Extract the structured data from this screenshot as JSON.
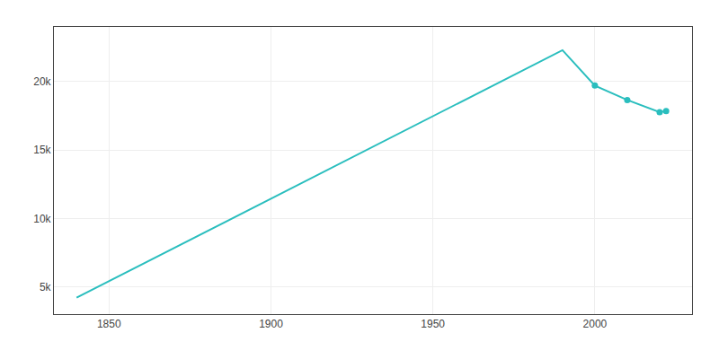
{
  "chart_data": {
    "type": "line",
    "x": [
      1840,
      1990,
      2000,
      2010,
      2020,
      2022
    ],
    "series": [
      {
        "color": "#2abebe",
        "marker": "none",
        "line_style": "solid",
        "values": [
          4200,
          22300,
          19711,
          18659,
          17769,
          17841
        ]
      },
      {
        "color": "#2abebe",
        "marker": "circle",
        "line_style": "none",
        "values": [
          null,
          null,
          19711,
          18659,
          17769,
          17841
        ]
      }
    ],
    "xlim": [
      1833,
      2030
    ],
    "xticks": [
      1850,
      1900,
      1950,
      2000
    ],
    "ylim": [
      3000,
      24000
    ],
    "yticks": [
      {
        "value": 5000,
        "label": "5k"
      },
      {
        "value": 10000,
        "label": "10k"
      },
      {
        "value": 15000,
        "label": "15k"
      },
      {
        "value": 20000,
        "label": "20k"
      }
    ],
    "grid": true
  }
}
